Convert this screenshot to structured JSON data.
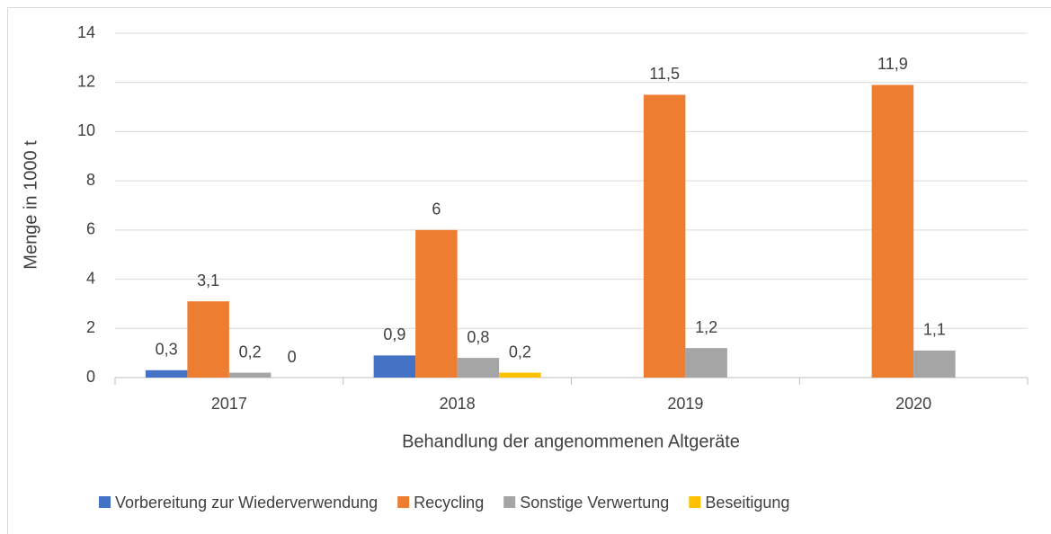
{
  "chart_data": {
    "type": "bar",
    "categories": [
      "2017",
      "2018",
      "2019",
      "2020"
    ],
    "x_label": "Behandlung der angenommenen Altgeräte",
    "y_label": "Menge in 1000 t",
    "series": [
      {
        "name": "Vorbereitung zur Wiederverwendung",
        "color": "#4472c4",
        "values": [
          0.3,
          0.9,
          null,
          null
        ],
        "value_labels": [
          "0,3",
          "0,9",
          null,
          null
        ]
      },
      {
        "name": "Recycling",
        "color": "#ed7d31",
        "values": [
          3.1,
          6,
          11.5,
          11.9
        ],
        "value_labels": [
          "3,1",
          "6",
          "11,5",
          "11,9"
        ]
      },
      {
        "name": "Sonstige Verwertung",
        "color": "#a5a5a5",
        "values": [
          0.2,
          0.8,
          1.2,
          1.1
        ],
        "value_labels": [
          "0,2",
          "0,8",
          "1,2",
          "1,1"
        ]
      },
      {
        "name": "Beseitigung",
        "color": "#ffc000",
        "values": [
          0,
          0.2,
          null,
          null
        ],
        "value_labels": [
          "0",
          "0,2",
          null,
          null
        ]
      }
    ],
    "ylim": [
      0,
      14
    ],
    "yticks": [
      0,
      2,
      4,
      6,
      8,
      10,
      12,
      14
    ],
    "grid": true,
    "legend": "bottom"
  }
}
